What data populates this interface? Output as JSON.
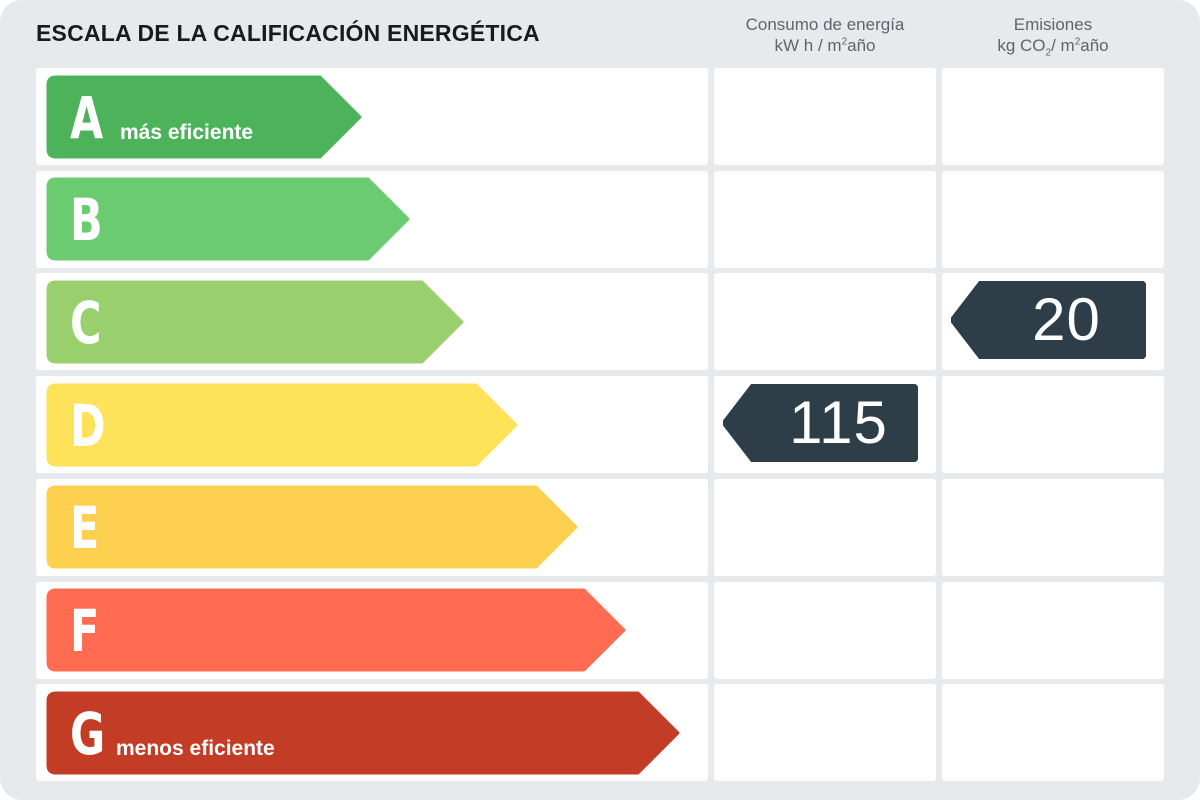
{
  "header": {
    "title": "ESCALA DE LA CALIFICACIÓN ENERGÉTICA",
    "energy_col": {
      "line1": "Consumo de energía",
      "line2_pre": "kW h / m",
      "line2_sup": "2",
      "line2_post": "año"
    },
    "emissions_col": {
      "line1": "Emisiones",
      "line2_pre": "kg CO",
      "line2_sub": "2",
      "line2_mid": "/ m",
      "line2_sup": "2",
      "line2_post": "año"
    }
  },
  "chart_data": {
    "type": "energy-rating-scale",
    "title": "ESCALA DE LA CALIFICACIÓN ENERGÉTICA",
    "bands": [
      {
        "letter": "A",
        "label": "más eficiente",
        "color": "#4db35b"
      },
      {
        "letter": "B",
        "label": "",
        "color": "#6bcb70"
      },
      {
        "letter": "C",
        "label": "",
        "color": "#99d06d"
      },
      {
        "letter": "D",
        "label": "",
        "color": "#fde25a"
      },
      {
        "letter": "E",
        "label": "",
        "color": "#fdd04f"
      },
      {
        "letter": "F",
        "label": "",
        "color": "#ff6c52"
      },
      {
        "letter": "G",
        "label": "menos eficiente",
        "color": "#c33d26"
      }
    ],
    "energy_consumption": {
      "value": "115",
      "rating": "D",
      "unit": "kW h / m2año"
    },
    "emissions": {
      "value": "20",
      "rating": "C",
      "unit": "kg CO2/ m2año"
    },
    "marker_color": "#2d3e48"
  }
}
